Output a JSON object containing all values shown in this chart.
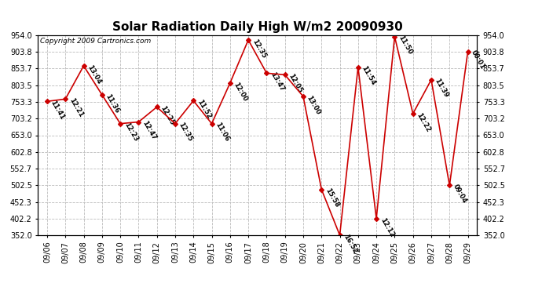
{
  "title": "Solar Radiation Daily High W/m2 20090930",
  "copyright": "Copyright 2009 Cartronics.com",
  "dates": [
    "09/06",
    "09/07",
    "09/08",
    "09/09",
    "09/10",
    "09/11",
    "09/12",
    "09/13",
    "09/14",
    "09/15",
    "09/16",
    "09/17",
    "09/18",
    "09/19",
    "09/20",
    "09/21",
    "09/22",
    "09/23",
    "09/24",
    "09/25",
    "09/26",
    "09/27",
    "09/28",
    "09/29"
  ],
  "values": [
    755.0,
    762.0,
    862.0,
    775.0,
    688.0,
    693.0,
    738.0,
    688.0,
    757.0,
    688.0,
    810.0,
    940.0,
    840.0,
    835.0,
    770.0,
    490.0,
    352.0,
    858.0,
    402.0,
    950.0,
    718.0,
    820.0,
    502.0,
    905.0
  ],
  "labels": [
    "11:41",
    "12:21",
    "13:04",
    "11:36",
    "12:23",
    "12:47",
    "12:25",
    "12:35",
    "11:52",
    "11:06",
    "12:00",
    "12:35",
    "13:47",
    "12:05",
    "13:00",
    "15:58",
    "16:52",
    "11:54",
    "12:12",
    "11:50",
    "12:22",
    "11:39",
    "09:04",
    "00:01"
  ],
  "ylim": [
    352.0,
    954.0
  ],
  "yticks": [
    352.0,
    402.2,
    452.3,
    502.5,
    552.7,
    602.8,
    653.0,
    703.2,
    753.3,
    803.5,
    853.7,
    903.8,
    954.0
  ],
  "line_color": "#cc0000",
  "marker": "D",
  "marker_size": 3,
  "grid_color": "#bbbbbb",
  "bg_color": "#ffffff",
  "title_fontsize": 11,
  "label_fontsize": 6.0,
  "tick_fontsize": 7.0
}
